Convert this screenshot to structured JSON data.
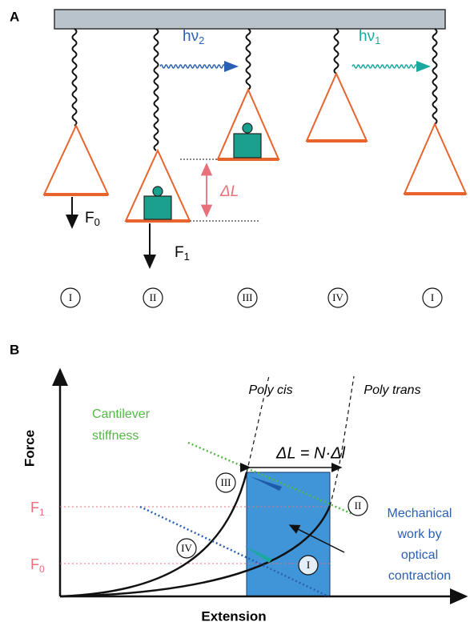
{
  "panel_a": {
    "label": "A",
    "photon_2": {
      "text": "hν",
      "sub": "2"
    },
    "photon_1": {
      "text": "hν",
      "sub": "1"
    },
    "force_0": {
      "text": "F",
      "sub": "0"
    },
    "force_1": {
      "text": "F",
      "sub": "1"
    },
    "delta_l": "ΔL",
    "stages": [
      "I",
      "II",
      "III",
      "IV",
      "I"
    ]
  },
  "panel_b": {
    "label": "B",
    "y_axis": "Force",
    "x_axis": "Extension",
    "poly_cis": "Poly cis",
    "poly_trans": "Poly trans",
    "cantilever": [
      "Cantilever",
      "stiffness"
    ],
    "delta_eq": "ΔL = N·Δl",
    "f1": {
      "text": "F",
      "sub": "1"
    },
    "f0": {
      "text": "F",
      "sub": "0"
    },
    "points": [
      "III",
      "II",
      "IV",
      "I"
    ],
    "work": [
      "Mechanical",
      "work by",
      "optical",
      "contraction"
    ]
  }
}
